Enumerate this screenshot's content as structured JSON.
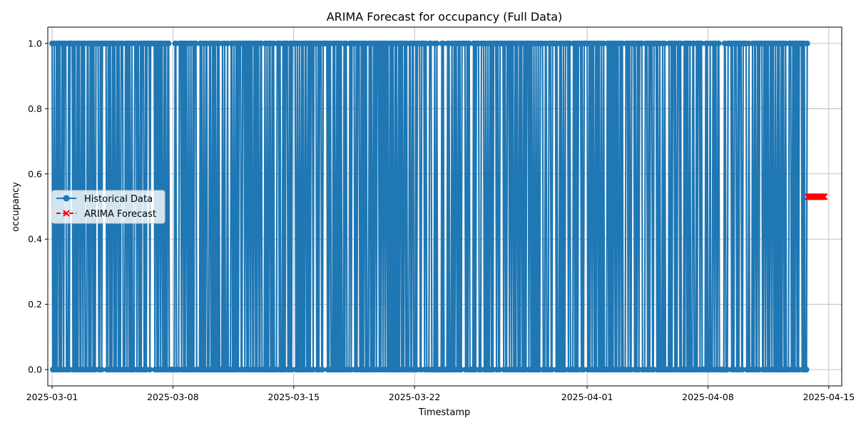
{
  "chart_data": {
    "type": "line",
    "title": "ARIMA Forecast for occupancy (Full Data)",
    "xlabel": "Timestamp",
    "ylabel": "occupancy",
    "x_type": "date",
    "xlim": [
      "2025-02-28T18:00",
      "2025-04-15T18:00"
    ],
    "ylim": [
      -0.05,
      1.05
    ],
    "grid": true,
    "legend_position": "center-left",
    "x_ticks": [
      "2025-03-01",
      "2025-03-08",
      "2025-03-15",
      "2025-03-22",
      "2025-04-01",
      "2025-04-08",
      "2025-04-15"
    ],
    "y_ticks": [
      0.0,
      0.2,
      0.4,
      0.6,
      0.8,
      1.0
    ],
    "y_tick_labels": [
      "0.0",
      "0.2",
      "0.4",
      "0.6",
      "0.8",
      "1.0"
    ],
    "series": [
      {
        "name": "Historical Data",
        "color": "#1f77b4",
        "marker": "circle",
        "line_style": "solid",
        "start": "2025-03-01T00:00",
        "end": "2025-04-13T18:00",
        "values_pattern": "binary 0/1 hourly occupancy (dense alternation)",
        "values": [
          1,
          0,
          1,
          1,
          0,
          0,
          1,
          0,
          1,
          1,
          0,
          1,
          0,
          0,
          1,
          1,
          0,
          1,
          0,
          1,
          1,
          0,
          0,
          1,
          0,
          1,
          1,
          1,
          0,
          0,
          1,
          0,
          1,
          0,
          1,
          1,
          0,
          1,
          0,
          0,
          1,
          1,
          1,
          0,
          1,
          0,
          0,
          1,
          0,
          1,
          1,
          0,
          1,
          1,
          0,
          0,
          1,
          0,
          1,
          0,
          0,
          1,
          1,
          0,
          1,
          1,
          0,
          1,
          0,
          0,
          1,
          0,
          1,
          1,
          1,
          0,
          0,
          1,
          0,
          1,
          0,
          1,
          1,
          0,
          1,
          0,
          1,
          1,
          0,
          0,
          1,
          1,
          0,
          1,
          0,
          0,
          1,
          0,
          1,
          1
        ]
      },
      {
        "name": "ARIMA Forecast",
        "color": "#ff0000",
        "marker": "x",
        "line_style": "dashed",
        "x": [
          "2025-04-13T19:00",
          "2025-04-13T20:00",
          "2025-04-13T21:00",
          "2025-04-13T22:00",
          "2025-04-13T23:00",
          "2025-04-14T00:00",
          "2025-04-14T01:00",
          "2025-04-14T02:00",
          "2025-04-14T03:00",
          "2025-04-14T04:00",
          "2025-04-14T05:00",
          "2025-04-14T06:00",
          "2025-04-14T07:00",
          "2025-04-14T08:00",
          "2025-04-14T09:00",
          "2025-04-14T10:00",
          "2025-04-14T11:00",
          "2025-04-14T12:00",
          "2025-04-14T13:00",
          "2025-04-14T14:00",
          "2025-04-14T15:00",
          "2025-04-14T16:00",
          "2025-04-14T17:00",
          "2025-04-14T18:00"
        ],
        "values": [
          0.53,
          0.53,
          0.53,
          0.53,
          0.53,
          0.53,
          0.53,
          0.53,
          0.53,
          0.53,
          0.53,
          0.53,
          0.53,
          0.53,
          0.53,
          0.53,
          0.53,
          0.53,
          0.53,
          0.53,
          0.53,
          0.53,
          0.53,
          0.53
        ]
      }
    ]
  }
}
